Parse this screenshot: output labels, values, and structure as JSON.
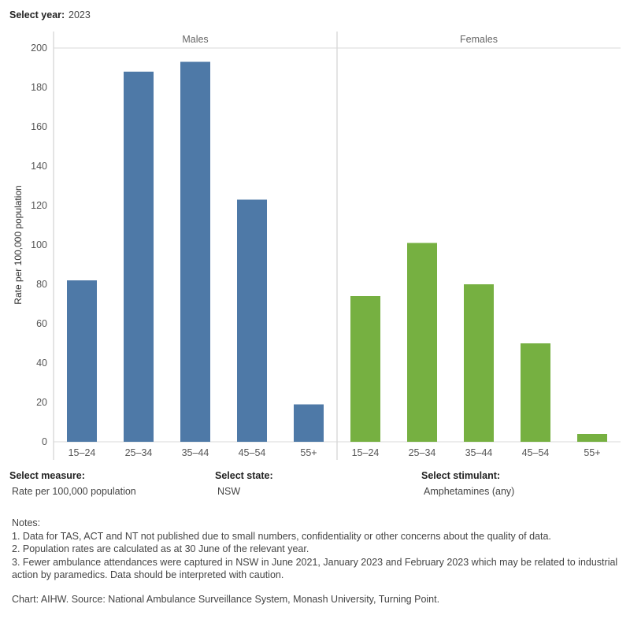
{
  "controls": {
    "year_label": "Select year:",
    "year_value": "2023",
    "measure_label": "Select measure:",
    "measure_value": "Rate per 100,000 population",
    "state_label": "Select state:",
    "state_value": "NSW",
    "stimulant_label": "Select stimulant:",
    "stimulant_value": "Amphetamines (any)"
  },
  "chart_data": {
    "type": "bar",
    "ylabel": "Rate per 100,000 population",
    "ylim": [
      0,
      200
    ],
    "yticks": [
      0,
      20,
      40,
      60,
      80,
      100,
      120,
      140,
      160,
      180,
      200
    ],
    "grid": false,
    "categories": [
      "15–24",
      "25–34",
      "35–44",
      "45–54",
      "55+"
    ],
    "panels": [
      {
        "name": "Males",
        "color": "#4e79a7",
        "values": [
          82,
          188,
          193,
          123,
          19
        ]
      },
      {
        "name": "Females",
        "color": "#76b041",
        "values": [
          74,
          101,
          80,
          50,
          4
        ]
      }
    ]
  },
  "notes": {
    "title": "Notes:",
    "lines": [
      "1. Data for TAS, ACT and NT not published due to small numbers, confidentiality or other concerns about the quality of data.",
      "2. Population rates are calculated as at 30 June of the relevant year.",
      "3. Fewer ambulance attendances were captured in NSW in June 2021, January 2023 and February 2023 which may be related to industrial action by paramedics. Data should be interpreted with caution."
    ]
  },
  "source": "Chart: AIHW. Source: National Ambulance Surveillance System, Monash University, Turning Point."
}
